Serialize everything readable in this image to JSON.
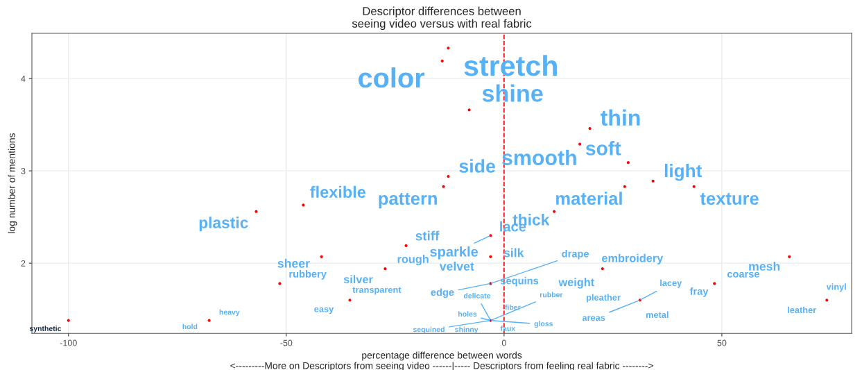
{
  "chart_data": {
    "type": "scatter",
    "title": "Descriptor differences between\nseeing video versus with real fabric",
    "xlabel": "percentage difference between words\n<---------More on Descriptors from seeing video ------|----- Descriptors from feeling real fabric -------->",
    "ylabel": "log number of mentions",
    "xlim": [
      -108.4,
      79.8
    ],
    "ylim": [
      1.24,
      4.49
    ],
    "xticks": [
      -100,
      -50,
      0,
      50
    ],
    "yticks": [
      2,
      3,
      4
    ],
    "grid": true,
    "marker": "circle",
    "ref_lines": [
      {
        "axis": "x",
        "value": 0,
        "color": "#ff0000",
        "line_style": "dashed"
      }
    ],
    "series": [
      {
        "color": "#ff0000",
        "x": [
          -12.8,
          -14.2,
          -8.0,
          19.7,
          17.4,
          28.5,
          -12.8,
          -13.9,
          27.7,
          34.2,
          43.6,
          -46.1,
          -56.9,
          11.5,
          -3.1,
          -22.5,
          -3.1,
          -41.9,
          65.5,
          -27.3,
          22.6,
          -3.1,
          -51.5,
          48.3,
          -35.4,
          31.2,
          74.1,
          -67.7,
          -100,
          -3.1
        ],
        "values": [
          4.33,
          4.19,
          3.66,
          3.46,
          3.29,
          3.09,
          2.94,
          2.83,
          2.83,
          2.89,
          2.83,
          2.63,
          2.56,
          2.56,
          2.3,
          2.19,
          2.07,
          2.07,
          2.07,
          1.94,
          1.94,
          1.78,
          1.78,
          1.78,
          1.6,
          1.6,
          1.6,
          1.38,
          1.38,
          1.38
        ]
      }
    ],
    "annotations": [
      {
        "text": "stretch",
        "x": -12.8,
        "y": 4.33
      },
      {
        "text": "color",
        "x": -14.2,
        "y": 4.19
      },
      {
        "text": "shine",
        "x": -8.0,
        "y": 3.66
      },
      {
        "text": "thin",
        "x": 19.7,
        "y": 3.46
      },
      {
        "text": "smooth",
        "x": 17.4,
        "y": 3.29
      },
      {
        "text": "soft",
        "x": 28.5,
        "y": 3.09
      },
      {
        "text": "side",
        "x": -12.8,
        "y": 2.94
      },
      {
        "text": "pattern",
        "x": -13.9,
        "y": 2.83
      },
      {
        "text": "material",
        "x": 27.7,
        "y": 2.83
      },
      {
        "text": "light",
        "x": 34.2,
        "y": 2.89
      },
      {
        "text": "texture",
        "x": 43.6,
        "y": 2.83
      },
      {
        "text": "flexible",
        "x": -46.1,
        "y": 2.63
      },
      {
        "text": "plastic",
        "x": -56.9,
        "y": 2.56
      },
      {
        "text": "thick",
        "x": 11.5,
        "y": 2.56
      },
      {
        "text": "lace",
        "x": -3.1,
        "y": 2.3
      },
      {
        "text": "stiff",
        "x": -22.5,
        "y": 2.19
      },
      {
        "text": "sparkle",
        "x": -3.1,
        "y": 2.3
      },
      {
        "text": "silk",
        "x": -3.1,
        "y": 2.07
      },
      {
        "text": "velvet",
        "x": -3.1,
        "y": 2.07
      },
      {
        "text": "sheer",
        "x": -41.9,
        "y": 2.07
      },
      {
        "text": "mesh",
        "x": 65.5,
        "y": 2.07
      },
      {
        "text": "rough",
        "x": -27.3,
        "y": 1.94
      },
      {
        "text": "silver",
        "x": -27.3,
        "y": 1.94
      },
      {
        "text": "embroidery",
        "x": 22.6,
        "y": 1.94
      },
      {
        "text": "weight",
        "x": 22.6,
        "y": 1.94
      },
      {
        "text": "drape",
        "x": -3.1,
        "y": 1.78
      },
      {
        "text": "sequins",
        "x": -3.1,
        "y": 1.78
      },
      {
        "text": "edge",
        "x": -3.1,
        "y": 1.78
      },
      {
        "text": "rubbery",
        "x": -51.5,
        "y": 1.78
      },
      {
        "text": "coarse",
        "x": 48.3,
        "y": 1.78
      },
      {
        "text": "fray",
        "x": 48.3,
        "y": 1.78
      },
      {
        "text": "transparent",
        "x": -35.4,
        "y": 1.6
      },
      {
        "text": "easy",
        "x": -35.4,
        "y": 1.6
      },
      {
        "text": "lacey",
        "x": 31.2,
        "y": 1.6
      },
      {
        "text": "pleather",
        "x": 31.2,
        "y": 1.6
      },
      {
        "text": "metal",
        "x": 31.2,
        "y": 1.6
      },
      {
        "text": "areas",
        "x": 31.2,
        "y": 1.6
      },
      {
        "text": "vinyl",
        "x": 74.1,
        "y": 1.6
      },
      {
        "text": "leather",
        "x": 74.1,
        "y": 1.6
      },
      {
        "text": "heavy",
        "x": -67.7,
        "y": 1.38
      },
      {
        "text": "hold",
        "x": -67.7,
        "y": 1.38
      },
      {
        "text": "synthetic",
        "x": -100,
        "y": 1.38
      },
      {
        "text": "delicate",
        "x": -3.1,
        "y": 1.38
      },
      {
        "text": "fiber",
        "x": -3.1,
        "y": 1.38
      },
      {
        "text": "rubber",
        "x": -3.1,
        "y": 1.38
      },
      {
        "text": "holes",
        "x": -3.1,
        "y": 1.38
      },
      {
        "text": "gloss",
        "x": -3.1,
        "y": 1.38
      },
      {
        "text": "sequined",
        "x": -3.1,
        "y": 1.38
      },
      {
        "text": "shinny",
        "x": -3.1,
        "y": 1.38
      },
      {
        "text": "faux",
        "x": -3.1,
        "y": 1.38
      }
    ]
  }
}
